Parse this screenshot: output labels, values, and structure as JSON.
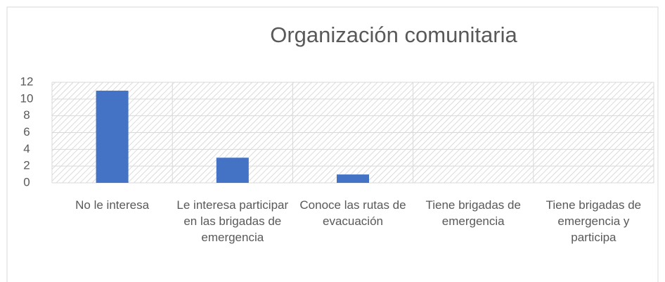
{
  "chart_data": {
    "type": "bar",
    "title": "Organización comunitaria",
    "categories": [
      "No le interesa",
      "Le interesa participar en las brigadas de emergencia",
      "Conoce las rutas de evacuación",
      "Tiene brigadas de emergencia",
      "Tiene brigadas de emergencia y participa"
    ],
    "values": [
      11,
      3,
      1,
      0,
      0
    ],
    "color": "#4472c4",
    "ylim": [
      0,
      12
    ],
    "yticks": [
      0,
      2,
      4,
      6,
      8,
      10,
      12
    ],
    "grid": true
  }
}
